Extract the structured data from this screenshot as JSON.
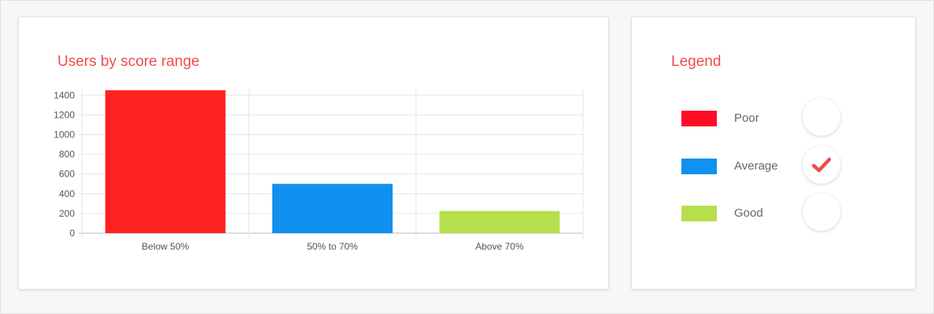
{
  "chart_data": {
    "type": "bar",
    "title": "Users by score range",
    "categories": [
      "Below 50%",
      "50% to 70%",
      "Above 70%"
    ],
    "values": [
      1470,
      500,
      225
    ],
    "colors": [
      "#ff211f",
      "#1090ef",
      "#b5e04b"
    ],
    "ylim": [
      0,
      1450
    ],
    "yticks": [
      0,
      200,
      400,
      600,
      800,
      1000,
      1200,
      1400
    ],
    "grid": true,
    "xlabel": "",
    "ylabel": ""
  },
  "legend": {
    "title": "Legend",
    "items": [
      {
        "label": "Poor",
        "color": "#ff0d25",
        "checked": false
      },
      {
        "label": "Average",
        "color": "#1090ef",
        "checked": true
      },
      {
        "label": "Good",
        "color": "#b5e04b",
        "checked": false
      }
    ],
    "check_color": "#f24a4a",
    "check_icon": "check-icon"
  }
}
